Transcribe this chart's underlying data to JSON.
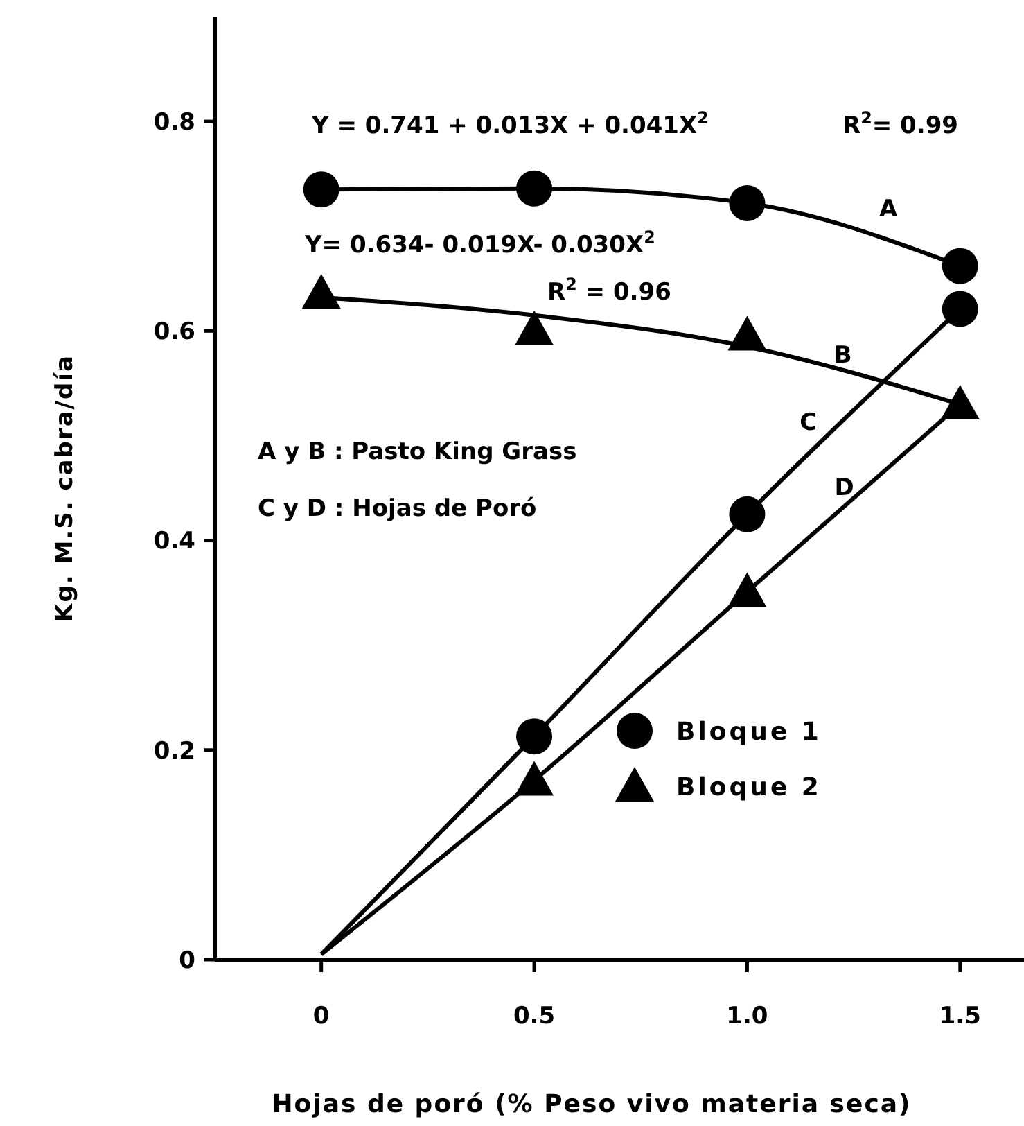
{
  "chart_data": {
    "type": "line",
    "xlabel": "Hojas de poró (% Peso vivo materia seca)",
    "ylabel": "Kg. M.S. cabra/día",
    "xlim": [
      -0.25,
      1.65
    ],
    "ylim": [
      0,
      0.9
    ],
    "xticks": [
      0,
      0.5,
      {
        "value": 1,
        "label": "1.0"
      },
      1.5
    ],
    "yticks": [
      0,
      0.2,
      0.4,
      0.6,
      0.8
    ],
    "grid": false,
    "legend": "bottom right",
    "line_style": "solid",
    "series": [
      {
        "name": "Bloque 1",
        "type": "scatter",
        "marker": "circle",
        "color": "#000000",
        "x": [
          0,
          0.5,
          1,
          1.5,
          0.5,
          1,
          1.5
        ],
        "values": [
          0.735,
          0.736,
          0.722,
          0.662,
          0.213,
          0.425,
          0.621
        ]
      },
      {
        "name": "Bloque 2",
        "type": "scatter",
        "marker": "triangle",
        "color": "#000000",
        "x": [
          0,
          0.5,
          1,
          1.5,
          0.5,
          1
        ],
        "values": [
          0.636,
          0.601,
          0.596,
          0.53,
          0.171,
          0.351
        ]
      },
      {
        "name": "A",
        "marker": "none",
        "color": "#000000",
        "x": [
          0,
          0.5,
          1,
          1.5
        ],
        "values": [
          0.735,
          0.736,
          0.722,
          0.662
        ]
      },
      {
        "name": "B",
        "marker": "none",
        "color": "#000000",
        "x": [
          0,
          0.5,
          1,
          1.5
        ],
        "values": [
          0.632,
          0.615,
          0.585,
          0.53
        ]
      },
      {
        "name": "C",
        "marker": "none",
        "color": "#000000",
        "x": [
          0,
          0.5,
          1,
          1.5
        ],
        "values": [
          0.005,
          0.213,
          0.425,
          0.621
        ]
      },
      {
        "name": "D",
        "marker": "none",
        "color": "#000000",
        "x": [
          0,
          0.5,
          1,
          1.5
        ],
        "values": [
          0.005,
          0.171,
          0.351,
          0.53
        ]
      }
    ],
    "annotations": [
      "Y = 0.741 + 0.013X + 0.041X$^{2}$",
      "R$^{2}$= 0.99",
      "Y= 0.634- 0.019X- 0.030X$^{2}$",
      "R$^{2}$ = 0.96",
      "A y B : Pasto King Grass",
      "C y D : Hojas de Poró"
    ]
  }
}
